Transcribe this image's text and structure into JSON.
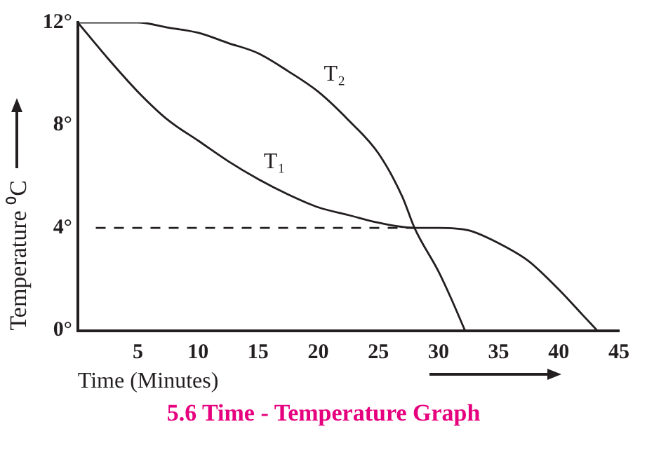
{
  "chart_data": {
    "type": "line",
    "title": "5.6  Time - Temperature Graph",
    "xlabel": "Time (Minutes)",
    "ylabel": "Temperature ⁰C",
    "xlim": [
      0,
      45
    ],
    "xticks": [
      5,
      10,
      15,
      20,
      25,
      30,
      35,
      40,
      45
    ],
    "ylim": [
      0,
      12
    ],
    "yticks": [
      {
        "value": 0,
        "label": "0°"
      },
      {
        "value": 4,
        "label": "4°"
      },
      {
        "value": 8,
        "label": "8°"
      },
      {
        "value": 12,
        "label": "12°"
      }
    ],
    "grid": false,
    "legend": false,
    "marker": "none",
    "series": [
      {
        "name": "T₁",
        "color": "#231f20",
        "x": [
          0,
          2.5,
          5,
          7.5,
          10,
          12.5,
          15,
          17.5,
          20,
          22.5,
          25,
          28,
          30,
          32.5,
          35,
          37.5,
          40,
          42,
          43.2
        ],
        "values": [
          12,
          10.6,
          9.3,
          8.2,
          7.4,
          6.6,
          5.9,
          5.3,
          4.8,
          4.5,
          4.2,
          4,
          4,
          3.9,
          3.4,
          2.7,
          1.6,
          0.6,
          0
        ]
      },
      {
        "name": "T₂",
        "color": "#231f20",
        "x": [
          0,
          2.5,
          5,
          7.5,
          10,
          12.5,
          15,
          17.5,
          20,
          22.5,
          25,
          27,
          28,
          30,
          31,
          32.2
        ],
        "values": [
          12,
          12,
          12,
          11.8,
          11.6,
          11.2,
          10.8,
          10.1,
          9.3,
          8.2,
          6.9,
          5.2,
          4,
          2.3,
          1.3,
          0
        ]
      },
      {
        "color": "#231f20",
        "line_style": "dashed",
        "x": [
          1.5,
          28
        ],
        "values": [
          4,
          4
        ]
      }
    ]
  }
}
